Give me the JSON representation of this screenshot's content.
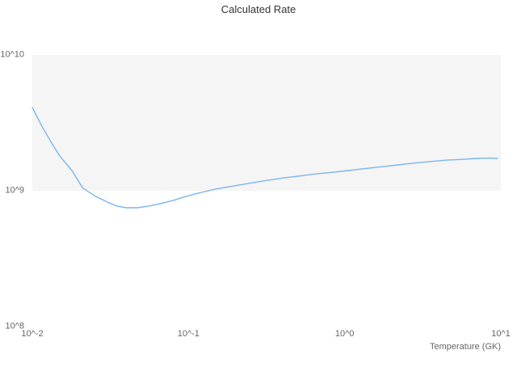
{
  "chart_data": {
    "type": "line",
    "title": "Calculated Rate",
    "xlabel": "Temperature (GK)",
    "ylabel": "",
    "x_scale": "log",
    "y_scale": "log",
    "xlim": [
      0.01,
      10
    ],
    "ylim": [
      100000000.0,
      10000000000.0
    ],
    "grid": "alternate-band",
    "legend": "none",
    "band": {
      "from": 1000000000.0,
      "to": 10000000000.0,
      "color": "#f5f5f5"
    },
    "x_ticks": [
      {
        "value": 0.01,
        "label": "10^-2"
      },
      {
        "value": 0.1,
        "label": "10^-1"
      },
      {
        "value": 1,
        "label": "10^0"
      },
      {
        "value": 10,
        "label": "10^1"
      }
    ],
    "y_ticks": [
      {
        "value": 100000000.0,
        "label": "10^8"
      },
      {
        "value": 1000000000.0,
        "label": "10^9"
      },
      {
        "value": 10000000000.0,
        "label": "10^10"
      }
    ],
    "series": [
      {
        "name": "Calculated Rate",
        "color": "#7cb5ec",
        "x": [
          0.01,
          0.0115,
          0.013,
          0.015,
          0.018,
          0.021,
          0.025,
          0.03,
          0.035,
          0.04,
          0.047,
          0.055,
          0.065,
          0.08,
          0.1,
          0.12,
          0.15,
          0.19,
          0.24,
          0.3,
          0.4,
          0.5,
          0.65,
          0.8,
          1.0,
          1.3,
          1.7,
          2.2,
          2.8,
          3.5,
          4.5,
          5.5,
          7.0,
          8.5,
          9.5
        ],
        "y": [
          4100000000.0,
          3000000000.0,
          2350000000.0,
          1800000000.0,
          1400000000.0,
          1050000000.0,
          920000000.0,
          830000000.0,
          770000000.0,
          750000000.0,
          750000000.0,
          770000000.0,
          800000000.0,
          850000000.0,
          920000000.0,
          970000000.0,
          1030000000.0,
          1080000000.0,
          1130000000.0,
          1180000000.0,
          1240000000.0,
          1280000000.0,
          1330000000.0,
          1360000000.0,
          1400000000.0,
          1450000000.0,
          1500000000.0,
          1550000000.0,
          1600000000.0,
          1640000000.0,
          1680000000.0,
          1700000000.0,
          1730000000.0,
          1740000000.0,
          1730000000.0
        ]
      }
    ]
  },
  "colors": {
    "line": "#7cb5ec",
    "band": "#f5f5f5",
    "tick_label": "#666666",
    "title": "#333333",
    "background": "#ffffff"
  }
}
